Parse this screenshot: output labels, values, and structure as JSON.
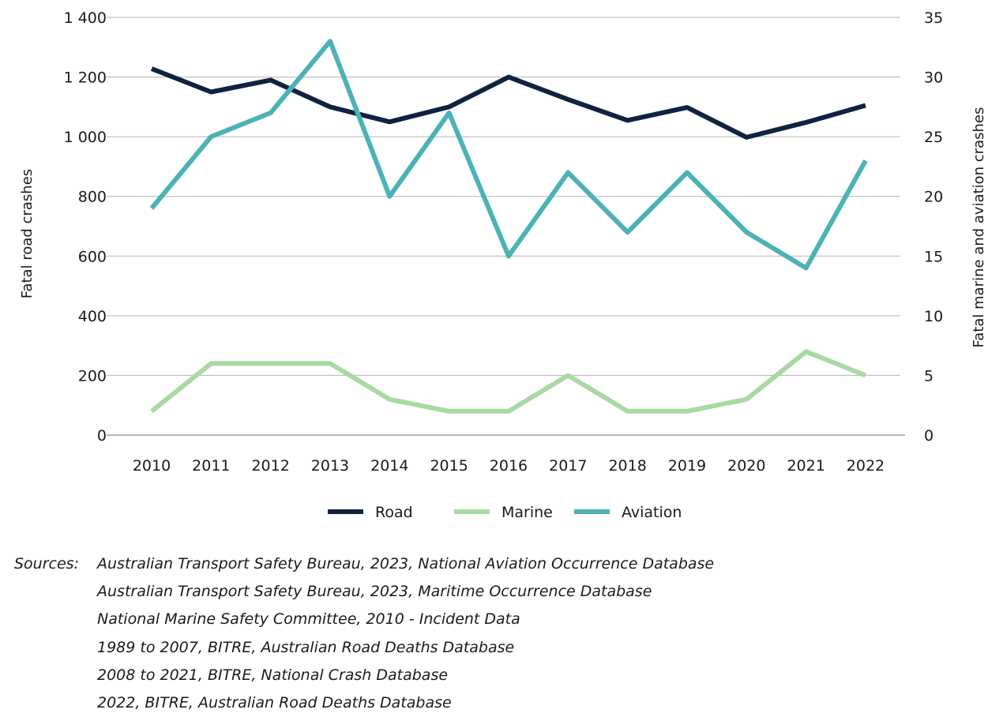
{
  "chart_data": {
    "type": "line",
    "categories": [
      "2010",
      "2011",
      "2012",
      "2013",
      "2014",
      "2015",
      "2016",
      "2017",
      "2018",
      "2019",
      "2020",
      "2021",
      "2022"
    ],
    "series": [
      {
        "name": "Road",
        "axis": "left",
        "color": "#0f2240",
        "values": [
          1228,
          1150,
          1190,
          1100,
          1050,
          1100,
          1200,
          1125,
          1055,
          1098,
          998,
          1048,
          1105
        ]
      },
      {
        "name": "Marine",
        "axis": "right",
        "color": "#a9d9a3",
        "values": [
          2,
          6,
          6,
          6,
          3,
          2,
          2,
          5,
          2,
          2,
          3,
          7,
          5
        ]
      },
      {
        "name": "Aviation",
        "axis": "right",
        "color": "#4bb2b6",
        "values": [
          19,
          25,
          27,
          33,
          20,
          27,
          15,
          22,
          17,
          22,
          17,
          14,
          23
        ]
      }
    ],
    "ylabel_left": "Fatal road crashes",
    "ylabel_right": "Fatal marine and aviation crashes",
    "ylim_left": [
      0,
      1400
    ],
    "ylim_right": [
      0,
      35
    ],
    "yticks_left": [
      "0",
      "200",
      "400",
      "600",
      "800",
      "1 000",
      "1 200",
      "1 400"
    ],
    "yticks_right": [
      "0",
      "5",
      "10",
      "15",
      "20",
      "25",
      "30",
      "35"
    ],
    "grid": true,
    "legend_position": "bottom-center"
  },
  "sources": {
    "label": "Sources:",
    "lines": [
      "Australian Transport Safety Bureau, 2023, National Aviation Occurrence Database",
      "Australian Transport Safety Bureau, 2023, Maritime Occurrence Database",
      "National Marine Safety Committee, 2010 - Incident Data",
      "1989 to 2007, BITRE, Australian Road Deaths Database",
      "2008 to 2021, BITRE, National Crash Database",
      "2022, BITRE, Australian Road Deaths Database"
    ]
  }
}
